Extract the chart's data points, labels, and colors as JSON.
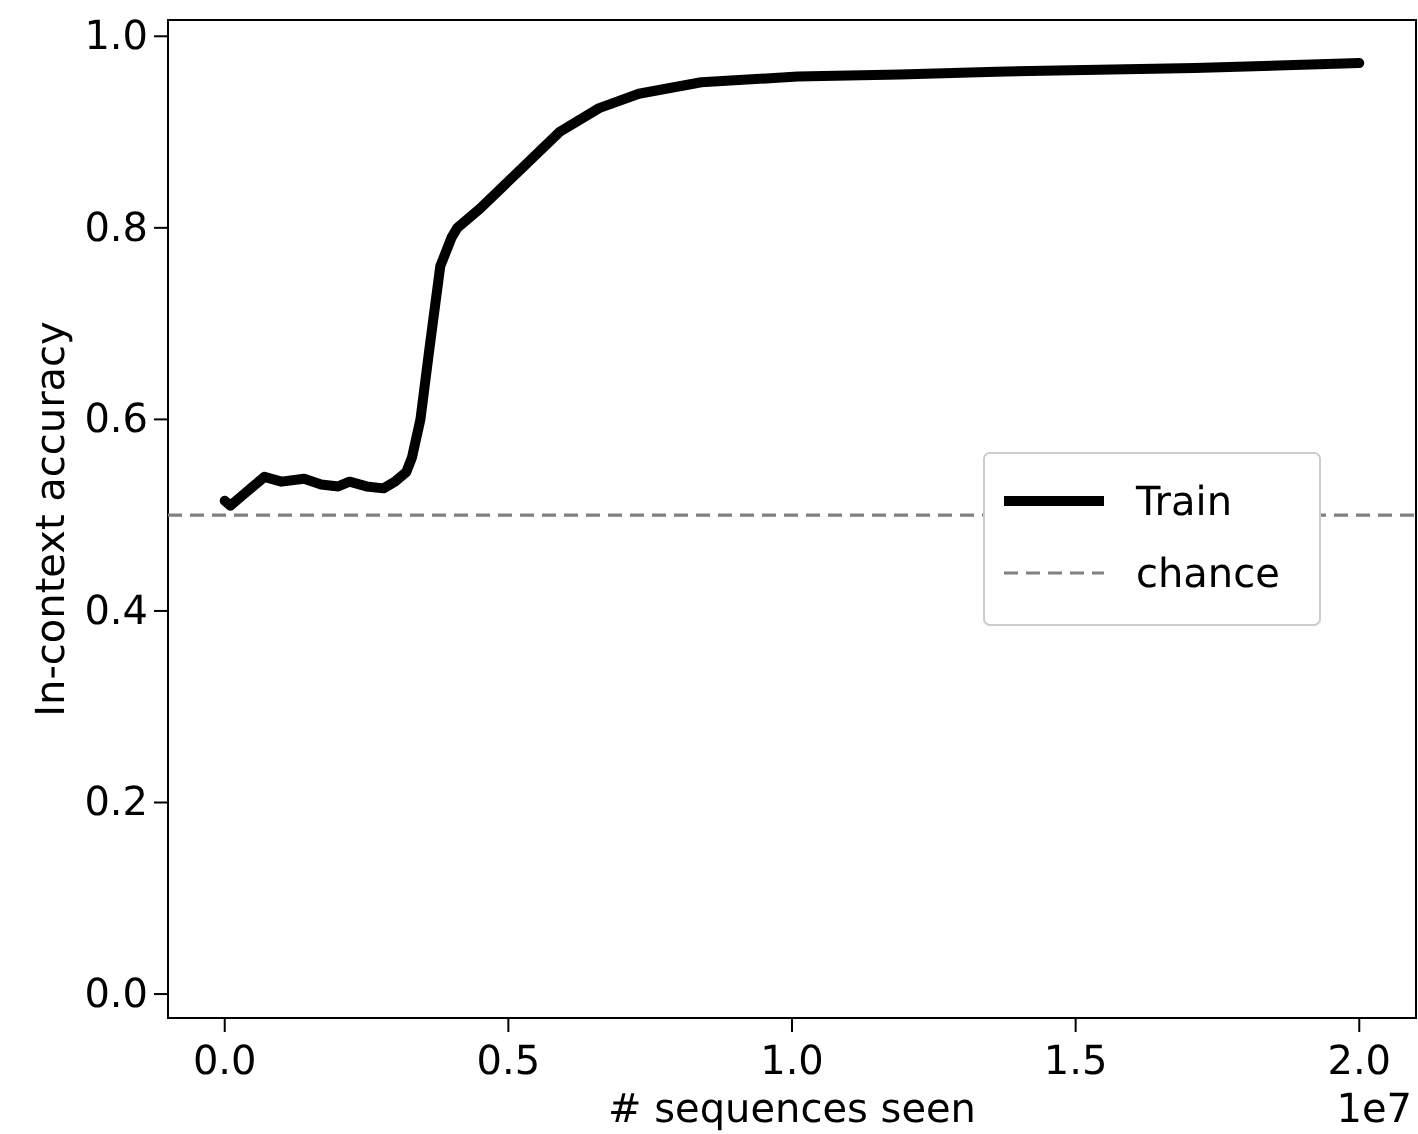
{
  "chart_data": {
    "type": "line",
    "xlabel": "# sequences seen",
    "ylabel": "In-context accuracy",
    "annotations": [
      "1e7"
    ],
    "xlim": [
      -0.1,
      2.1
    ],
    "ylim": [
      -0.025,
      1.017
    ],
    "xticks": [
      {
        "value": 0,
        "label": "0.0"
      },
      {
        "value": 0.5,
        "label": "0.5"
      },
      {
        "value": 1,
        "label": "1.0"
      },
      {
        "value": 1.5,
        "label": "1.5"
      },
      {
        "value": 2,
        "label": "2.0"
      }
    ],
    "yticks": [
      {
        "value": 0,
        "label": "0.0"
      },
      {
        "value": 0.2,
        "label": "0.2"
      },
      {
        "value": 0.4,
        "label": "0.4"
      },
      {
        "value": 0.6,
        "label": "0.6"
      },
      {
        "value": 0.8,
        "label": "0.8"
      },
      {
        "value": 1,
        "label": "1.0"
      }
    ],
    "grid": false,
    "legend": "center right",
    "marker": "none",
    "line_style": "solid",
    "series": [
      {
        "name": "Train",
        "color": "#000000",
        "x": [
          0,
          0.01,
          0.03,
          0.05,
          0.07,
          0.1,
          0.14,
          0.17,
          0.2,
          0.22,
          0.25,
          0.28,
          0.3,
          0.32,
          0.33,
          0.345,
          0.36,
          0.38,
          0.4,
          0.41,
          0.45,
          0.52,
          0.59,
          0.66,
          0.73,
          0.84,
          1.01,
          1.19,
          1.36,
          1.54,
          1.71,
          2.0
        ],
        "values": [
          0.515,
          0.51,
          0.52,
          0.53,
          0.54,
          0.535,
          0.538,
          0.532,
          0.53,
          0.535,
          0.53,
          0.528,
          0.535,
          0.545,
          0.56,
          0.6,
          0.67,
          0.76,
          0.79,
          0.8,
          0.82,
          0.86,
          0.9,
          0.925,
          0.94,
          0.952,
          0.958,
          0.96,
          0.963,
          0.965,
          0.967,
          0.972
        ]
      }
    ],
    "ref_lines": [
      {
        "axis": "y",
        "value": 0.5,
        "label": "chance",
        "color": "#808080",
        "line_style": "dashed"
      }
    ]
  }
}
